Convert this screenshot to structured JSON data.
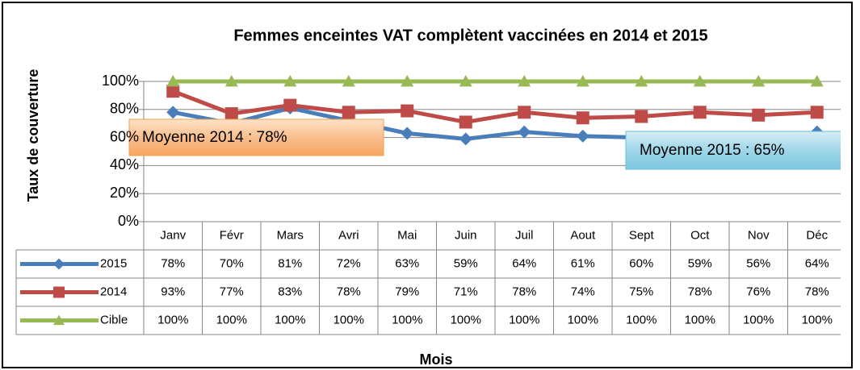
{
  "chart_data": {
    "type": "line",
    "title": "Femmes enceintes VAT complètent vaccinées en 2014 et 2015",
    "y_label": "Taux de couverture",
    "x_label": "Mois",
    "categories": [
      "Janv",
      "Févr",
      "Mars",
      "Avri",
      "Mai",
      "Juin",
      "Juil",
      "Aout",
      "Sept",
      "Oct",
      "Nov",
      "Déc"
    ],
    "series": [
      {
        "name": "2015",
        "color": "#4a7ebb",
        "marker": "diamond",
        "values": [
          78,
          70,
          81,
          72,
          63,
          59,
          64,
          61,
          60,
          59,
          56,
          64
        ],
        "value_labels": [
          "78%",
          "70%",
          "81%",
          "72%",
          "63%",
          "59%",
          "64%",
          "61%",
          "60%",
          "59%",
          "56%",
          "64%"
        ]
      },
      {
        "name": "2014",
        "color": "#be4b48",
        "marker": "square",
        "values": [
          93,
          77,
          83,
          78,
          79,
          71,
          78,
          74,
          75,
          78,
          76,
          78
        ],
        "value_labels": [
          "93%",
          "77%",
          "83%",
          "78%",
          "79%",
          "71%",
          "78%",
          "74%",
          "75%",
          "78%",
          "76%",
          "78%"
        ]
      },
      {
        "name": "Cible",
        "color": "#98b954",
        "marker": "triangle",
        "values": [
          100,
          100,
          100,
          100,
          100,
          100,
          100,
          100,
          100,
          100,
          100,
          100
        ],
        "value_labels": [
          "100%",
          "100%",
          "100%",
          "100%",
          "100%",
          "100%",
          "100%",
          "100%",
          "100%",
          "100%",
          "100%",
          "100%"
        ]
      }
    ],
    "ylim": [
      0,
      100
    ],
    "yticks": [
      {
        "value": 0,
        "label": "0%"
      },
      {
        "value": 20,
        "label": "20%"
      },
      {
        "value": 40,
        "label": "40%"
      },
      {
        "value": 60,
        "label": "60%"
      },
      {
        "value": 80,
        "label": "80%"
      },
      {
        "value": 100,
        "label": "100%"
      }
    ],
    "grid": true,
    "annotations": [
      "Moyenne 2014 : 78%",
      "Moyenne 2015 : 65%"
    ]
  }
}
